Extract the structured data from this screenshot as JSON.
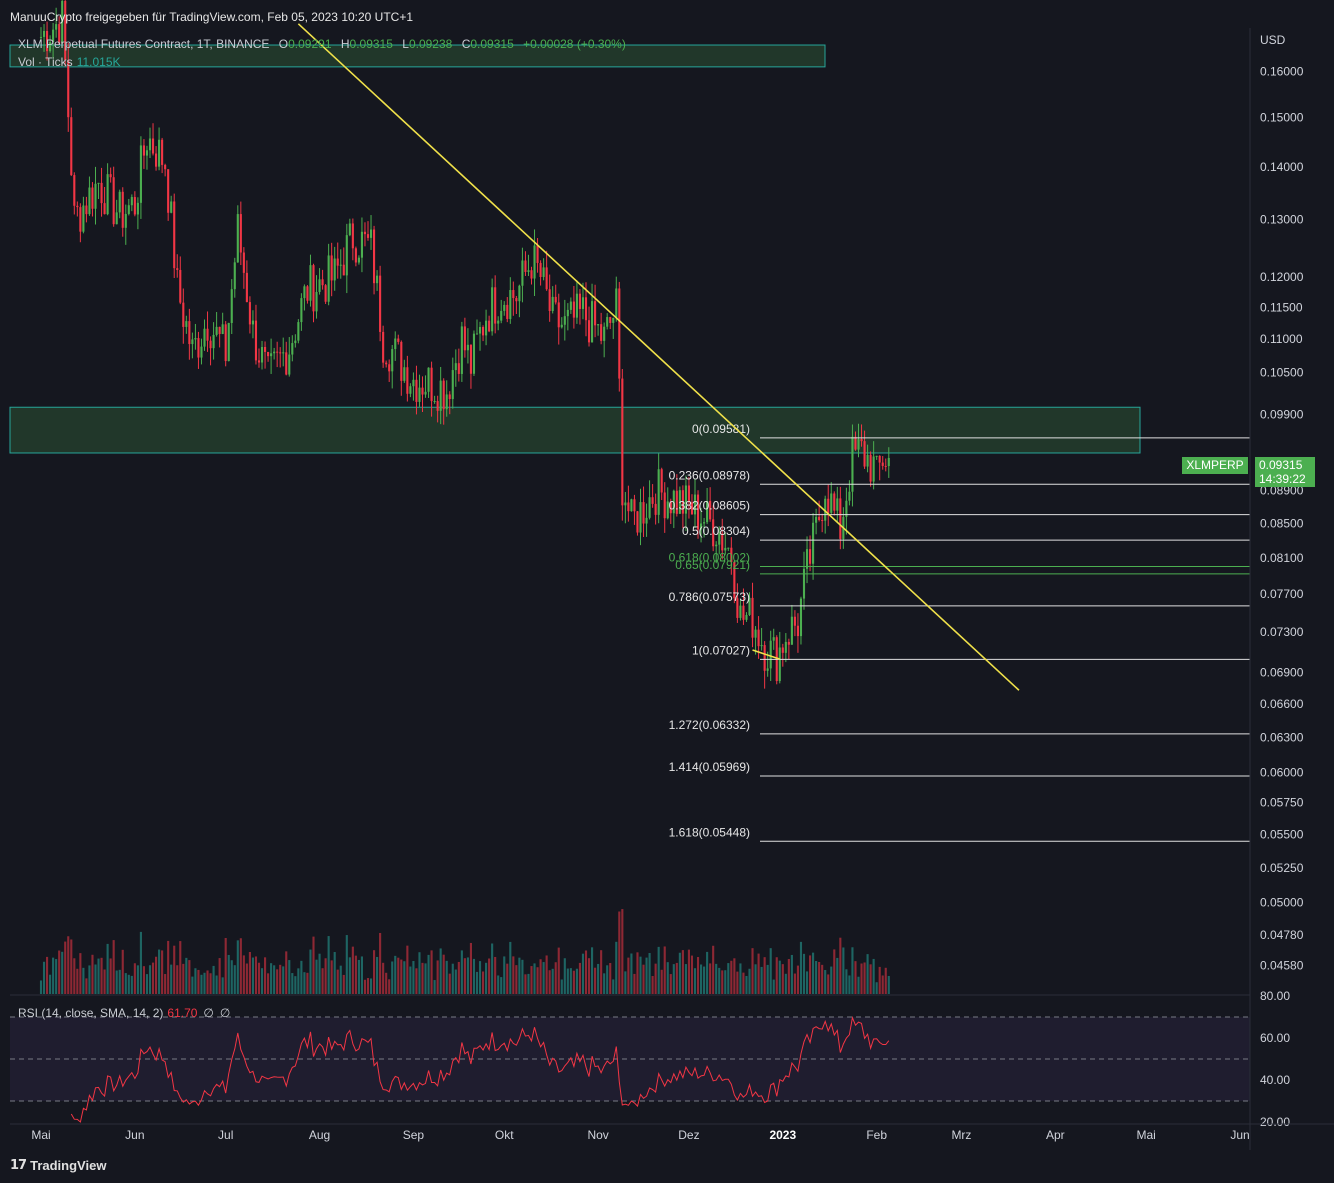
{
  "header": {
    "text": "ManuuCrypto freigegeben für TradingView.com, Feb 05, 2023 10:20 UTC+1"
  },
  "legend": {
    "symbol": "XLM Perpetual Futures Contract, 1T, BINANCE",
    "o_label": "O",
    "o_value": "0.09291",
    "h_label": "H",
    "h_value": "0.09315",
    "l_label": "L",
    "l_value": "0.09238",
    "c_label": "C",
    "c_value": "0.09315",
    "change": "+0.00028 (+0.30%)"
  },
  "volume_legend": {
    "label": "Vol · Ticks",
    "value": "11.015K"
  },
  "rsi_legend": {
    "label": "RSI (14, close, SMA, 14, 2)",
    "value": "61.70",
    "na1": "∅",
    "na2": "∅"
  },
  "price_axis": {
    "currency": "USD"
  },
  "price_tag": {
    "symbol": "XLMPERP",
    "price": "0.09315",
    "countdown": "14:39:22"
  },
  "footer": {
    "brand": "TradingView",
    "logo": "tv-logo-icon"
  },
  "colors": {
    "up": "#4caf50",
    "down": "#f23645",
    "trendline": "#f0e14a",
    "zone": "#26a69a",
    "rsi": "#f23645",
    "background": "#15171f"
  },
  "chart_data": {
    "type": "candlestick",
    "symbol": "XLMPERP",
    "interval": "1T",
    "y_scale": "log",
    "ylim": [
      0.044,
      0.17
    ],
    "x_ticks": [
      "Mai",
      "Jun",
      "Jul",
      "Aug",
      "Sep",
      "Okt",
      "Nov",
      "Dez",
      "2023",
      "Feb",
      "Mrz",
      "Apr",
      "Mai",
      "Jun"
    ],
    "x_tick_dates": [
      "2022-05-01",
      "2022-06-01",
      "2022-07-01",
      "2022-08-01",
      "2022-09-01",
      "2022-10-01",
      "2022-11-01",
      "2022-12-01",
      "2023-01-01",
      "2023-02-01",
      "2023-03-01",
      "2023-04-01",
      "2023-05-01",
      "2023-06-01"
    ],
    "y_ticks": [
      0.16,
      0.15,
      0.14,
      0.13,
      0.12,
      0.115,
      0.11,
      0.105,
      0.099,
      0.089,
      0.085,
      0.081,
      0.077,
      0.073,
      0.069,
      0.066,
      0.063,
      0.06,
      0.0575,
      0.055,
      0.0525,
      0.05,
      0.0478,
      0.0458
    ],
    "y_tick_labels": [
      "0.16000",
      "0.15000",
      "0.14000",
      "0.13000",
      "0.12000",
      "0.11500",
      "0.11000",
      "0.10500",
      "0.09900",
      "0.08900",
      "0.08500",
      "0.08100",
      "0.07700",
      "0.07300",
      "0.06900",
      "0.06600",
      "0.06300",
      "0.06000",
      "0.05750",
      "0.05500",
      "0.05250",
      "0.05000",
      "0.04780",
      "0.04580"
    ],
    "anchors": [
      {
        "date": "2022-05-01",
        "close": 0.168
      },
      {
        "date": "2022-05-08",
        "close": 0.172
      },
      {
        "date": "2022-05-12",
        "close": 0.13
      },
      {
        "date": "2022-05-20",
        "close": 0.137
      },
      {
        "date": "2022-05-27",
        "close": 0.131
      },
      {
        "date": "2022-06-01",
        "close": 0.133
      },
      {
        "date": "2022-06-05",
        "close": 0.146
      },
      {
        "date": "2022-06-11",
        "close": 0.141
      },
      {
        "date": "2022-06-15",
        "close": 0.118
      },
      {
        "date": "2022-06-20",
        "close": 0.108
      },
      {
        "date": "2022-06-25",
        "close": 0.113
      },
      {
        "date": "2022-07-01",
        "close": 0.108
      },
      {
        "date": "2022-07-05",
        "close": 0.128
      },
      {
        "date": "2022-07-10",
        "close": 0.111
      },
      {
        "date": "2022-07-15",
        "close": 0.104
      },
      {
        "date": "2022-07-22",
        "close": 0.109
      },
      {
        "date": "2022-07-28",
        "close": 0.118
      },
      {
        "date": "2022-08-06",
        "close": 0.12
      },
      {
        "date": "2022-08-12",
        "close": 0.127
      },
      {
        "date": "2022-08-18",
        "close": 0.125
      },
      {
        "date": "2022-08-22",
        "close": 0.11
      },
      {
        "date": "2022-09-01",
        "close": 0.104
      },
      {
        "date": "2022-09-07",
        "close": 0.1035
      },
      {
        "date": "2022-09-12",
        "close": 0.1025
      },
      {
        "date": "2022-09-17",
        "close": 0.11
      },
      {
        "date": "2022-09-20",
        "close": 0.106
      },
      {
        "date": "2022-09-25",
        "close": 0.114
      },
      {
        "date": "2022-09-30",
        "close": 0.117
      },
      {
        "date": "2022-10-05",
        "close": 0.117
      },
      {
        "date": "2022-10-10",
        "close": 0.123
      },
      {
        "date": "2022-10-13",
        "close": 0.12
      },
      {
        "date": "2022-10-17",
        "close": 0.113
      },
      {
        "date": "2022-10-21",
        "close": 0.112
      },
      {
        "date": "2022-10-27",
        "close": 0.114
      },
      {
        "date": "2022-11-03",
        "close": 0.11
      },
      {
        "date": "2022-11-07",
        "close": 0.115
      },
      {
        "date": "2022-11-09",
        "close": 0.09
      },
      {
        "date": "2022-11-12",
        "close": 0.085
      },
      {
        "date": "2022-11-20",
        "close": 0.089
      },
      {
        "date": "2022-11-26",
        "close": 0.088
      },
      {
        "date": "2022-12-03",
        "close": 0.0865
      },
      {
        "date": "2022-12-10",
        "close": 0.0845
      },
      {
        "date": "2022-12-15",
        "close": 0.0815
      },
      {
        "date": "2022-12-18",
        "close": 0.0745
      },
      {
        "date": "2022-12-22",
        "close": 0.0745
      },
      {
        "date": "2022-12-26",
        "close": 0.0715
      },
      {
        "date": "2022-12-30",
        "close": 0.0705
      },
      {
        "date": "2023-01-02",
        "close": 0.0728
      },
      {
        "date": "2023-01-06",
        "close": 0.074
      },
      {
        "date": "2023-01-09",
        "close": 0.0795
      },
      {
        "date": "2023-01-12",
        "close": 0.084
      },
      {
        "date": "2023-01-15",
        "close": 0.0898
      },
      {
        "date": "2023-01-18",
        "close": 0.086
      },
      {
        "date": "2023-01-20",
        "close": 0.0845
      },
      {
        "date": "2023-01-24",
        "close": 0.0932
      },
      {
        "date": "2023-01-27",
        "close": 0.094
      },
      {
        "date": "2023-01-31",
        "close": 0.092
      },
      {
        "date": "2023-02-01",
        "close": 0.0905
      },
      {
        "date": "2023-02-03",
        "close": 0.0932
      },
      {
        "date": "2023-02-05",
        "close": 0.09315
      }
    ],
    "last": {
      "open": 0.09291,
      "high": 0.09315,
      "low": 0.09238,
      "close": 0.09315,
      "change": 0.00028,
      "change_pct": 0.3
    },
    "fibonacci": {
      "levels": [
        {
          "label": "0(0.09581)",
          "ratio": 0,
          "price": 0.09581
        },
        {
          "label": "0.236(0.08978)",
          "ratio": 0.236,
          "price": 0.08978
        },
        {
          "label": "0.382(0.08605)",
          "ratio": 0.382,
          "price": 0.08605
        },
        {
          "label": "0.5(0.08304)",
          "ratio": 0.5,
          "price": 0.08304
        },
        {
          "label": "0.618(0.08002)",
          "ratio": 0.618,
          "price": 0.08002
        },
        {
          "label": "0.65(0.07921)",
          "ratio": 0.65,
          "price": 0.07921
        },
        {
          "label": "0.786(0.07573)",
          "ratio": 0.786,
          "price": 0.07573
        },
        {
          "label": "1(0.07027)",
          "ratio": 1,
          "price": 0.07027
        },
        {
          "label": "1.272(0.06332)",
          "ratio": 1.272,
          "price": 0.06332
        },
        {
          "label": "1.414(0.05969)",
          "ratio": 1.414,
          "price": 0.05969
        },
        {
          "label": "1.618(0.05448)",
          "ratio": 1.618,
          "price": 0.05448
        }
      ]
    },
    "zones": [
      {
        "from": "2022-05-01",
        "to": "2023-03-15",
        "low": 0.0938,
        "high": 0.1
      },
      {
        "from": "2022-05-01",
        "to": "2022-09-28",
        "low": 0.161,
        "high": 0.166
      }
    ],
    "trendlines": [
      {
        "from": {
          "date": "2022-07-25",
          "price": 0.171
        },
        "to": {
          "date": "2023-03-20",
          "price": 0.0673
        }
      },
      {
        "from": {
          "date": "2022-12-22",
          "price": 0.0712
        },
        "to": {
          "date": "2022-12-31",
          "price": 0.0703
        }
      }
    ],
    "volume": {
      "label": "Vol · Ticks",
      "last": "11.015K"
    },
    "rsi": {
      "label": "RSI (14, close, SMA, 14, 2)",
      "last": 61.7,
      "ylim": [
        20,
        80
      ],
      "y_ticks": [
        20,
        40,
        60,
        80
      ],
      "y_tick_labels": [
        "20.00",
        "40.00",
        "60.00",
        "80.00"
      ],
      "bands": [
        30,
        50,
        70
      ]
    }
  }
}
